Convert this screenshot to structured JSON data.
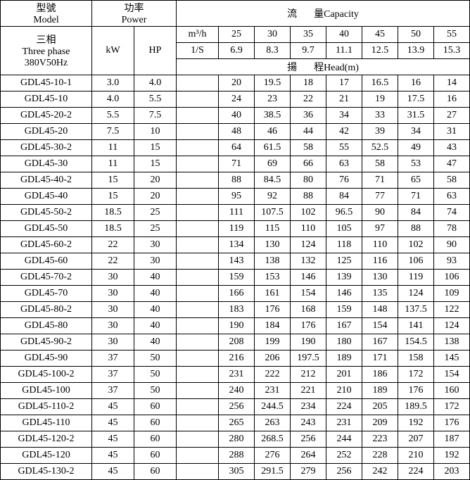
{
  "headers": {
    "model_zh": "型號",
    "model_en": "Model",
    "power_zh": "功率",
    "power_en": "Power",
    "capacity_zh": "流",
    "capacity_en": "量Capacity",
    "threephase_zh": "三相",
    "threephase_en": "Three phase",
    "voltage": "380V50Hz",
    "kw": "kW",
    "hp": "HP",
    "m3h": "m³/h",
    "ls": "1/S",
    "head_zh": "揚",
    "head_en": "程Head(m)"
  },
  "cap_m3h": [
    "25",
    "30",
    "35",
    "40",
    "45",
    "50",
    "55"
  ],
  "cap_ls": [
    "6.9",
    "8.3",
    "9.7",
    "11.1",
    "12.5",
    "13.9",
    "15.3"
  ],
  "rows": [
    {
      "m": "GDL45-10-1",
      "kw": "3.0",
      "hp": "4.0",
      "v": [
        "20",
        "19.5",
        "18",
        "17",
        "16.5",
        "16",
        "14"
      ]
    },
    {
      "m": "GDL45-10",
      "kw": "4.0",
      "hp": "5.5",
      "v": [
        "24",
        "23",
        "22",
        "21",
        "19",
        "17.5",
        "16"
      ]
    },
    {
      "m": "GDL45-20-2",
      "kw": "5.5",
      "hp": "7.5",
      "v": [
        "40",
        "38.5",
        "36",
        "34",
        "33",
        "31.5",
        "27"
      ]
    },
    {
      "m": "GDL45-20",
      "kw": "7.5",
      "hp": "10",
      "v": [
        "48",
        "46",
        "44",
        "42",
        "39",
        "34",
        "31"
      ]
    },
    {
      "m": "GDL45-30-2",
      "kw": "11",
      "hp": "15",
      "v": [
        "64",
        "61.5",
        "58",
        "55",
        "52.5",
        "49",
        "43"
      ]
    },
    {
      "m": "GDL45-30",
      "kw": "11",
      "hp": "15",
      "v": [
        "71",
        "69",
        "66",
        "63",
        "58",
        "53",
        "47"
      ]
    },
    {
      "m": "GDL45-40-2",
      "kw": "15",
      "hp": "20",
      "v": [
        "88",
        "84.5",
        "80",
        "76",
        "71",
        "65",
        "58"
      ]
    },
    {
      "m": "GDL45-40",
      "kw": "15",
      "hp": "20",
      "v": [
        "95",
        "92",
        "88",
        "84",
        "77",
        "71",
        "63"
      ]
    },
    {
      "m": "GDL45-50-2",
      "kw": "18.5",
      "hp": "25",
      "v": [
        "111",
        "107.5",
        "102",
        "96.5",
        "90",
        "84",
        "74"
      ]
    },
    {
      "m": "GDL45-50",
      "kw": "18.5",
      "hp": "25",
      "v": [
        "119",
        "115",
        "110",
        "105",
        "97",
        "88",
        "78"
      ]
    },
    {
      "m": "GDL45-60-2",
      "kw": "22",
      "hp": "30",
      "v": [
        "134",
        "130",
        "124",
        "118",
        "110",
        "102",
        "90"
      ]
    },
    {
      "m": "GDL45-60",
      "kw": "22",
      "hp": "30",
      "v": [
        "143",
        "138",
        "132",
        "125",
        "116",
        "106",
        "93"
      ]
    },
    {
      "m": "GDL45-70-2",
      "kw": "30",
      "hp": "40",
      "v": [
        "159",
        "153",
        "146",
        "139",
        "130",
        "119",
        "106"
      ]
    },
    {
      "m": "GDL45-70",
      "kw": "30",
      "hp": "40",
      "v": [
        "166",
        "161",
        "154",
        "146",
        "135",
        "124",
        "109"
      ]
    },
    {
      "m": "GDL45-80-2",
      "kw": "30",
      "hp": "40",
      "v": [
        "183",
        "176",
        "168",
        "159",
        "148",
        "137.5",
        "122"
      ]
    },
    {
      "m": "GDL45-80",
      "kw": "30",
      "hp": "40",
      "v": [
        "190",
        "184",
        "176",
        "167",
        "154",
        "141",
        "124"
      ]
    },
    {
      "m": "GDL45-90-2",
      "kw": "30",
      "hp": "40",
      "v": [
        "208",
        "199",
        "190",
        "180",
        "167",
        "154.5",
        "138"
      ]
    },
    {
      "m": "GDL45-90",
      "kw": "37",
      "hp": "50",
      "v": [
        "216",
        "206",
        "197.5",
        "189",
        "171",
        "158",
        "145"
      ]
    },
    {
      "m": "GDL45-100-2",
      "kw": "37",
      "hp": "50",
      "v": [
        "231",
        "222",
        "212",
        "201",
        "186",
        "172",
        "154"
      ]
    },
    {
      "m": "GDL45-100",
      "kw": "37",
      "hp": "50",
      "v": [
        "240",
        "231",
        "221",
        "210",
        "189",
        "176",
        "160"
      ]
    },
    {
      "m": "GDL45-110-2",
      "kw": "45",
      "hp": "60",
      "v": [
        "256",
        "244.5",
        "234",
        "224",
        "205",
        "189.5",
        "172"
      ]
    },
    {
      "m": "GDL45-110",
      "kw": "45",
      "hp": "60",
      "v": [
        "265",
        "263",
        "243",
        "231",
        "209",
        "192",
        "176"
      ]
    },
    {
      "m": "GDL45-120-2",
      "kw": "45",
      "hp": "60",
      "v": [
        "280",
        "268.5",
        "256",
        "244",
        "223",
        "207",
        "187"
      ]
    },
    {
      "m": "GDL45-120",
      "kw": "45",
      "hp": "60",
      "v": [
        "288",
        "276",
        "264",
        "252",
        "228",
        "210",
        "192"
      ]
    },
    {
      "m": "GDL45-130-2",
      "kw": "45",
      "hp": "60",
      "v": [
        "305",
        "291.5",
        "279",
        "256",
        "242",
        "224",
        "203"
      ]
    }
  ]
}
